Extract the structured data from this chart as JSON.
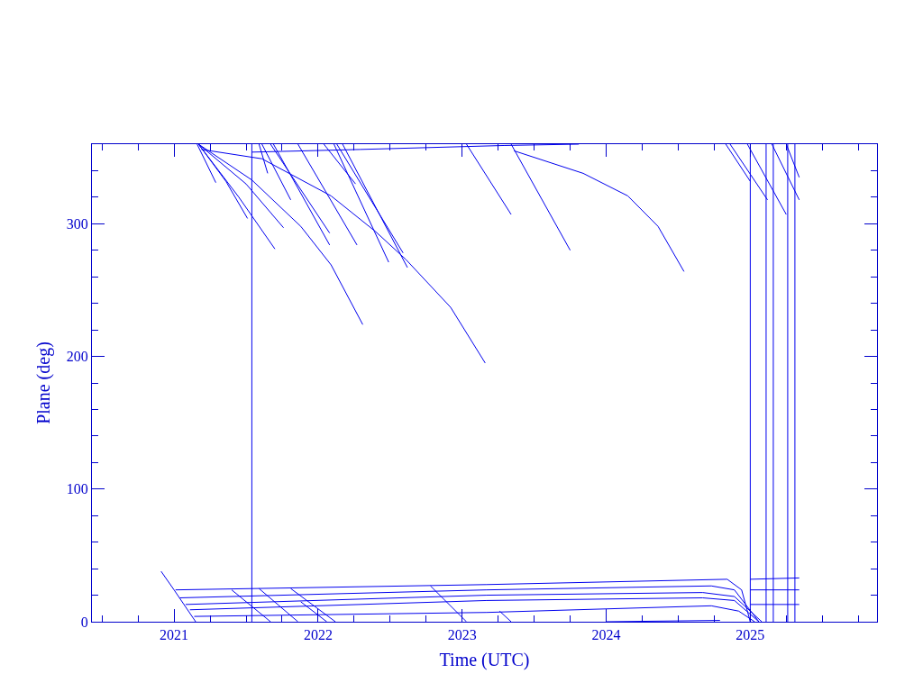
{
  "chart_data": {
    "type": "line",
    "xlabel": "Time (UTC)",
    "ylabel": "Plane (deg)",
    "xlim": [
      2020.43,
      2025.88
    ],
    "ylim": [
      0,
      360
    ],
    "xticks": [
      {
        "value": 2020.5,
        "label": null
      },
      {
        "value": 2020.75,
        "label": null
      },
      {
        "value": 2021,
        "label": "2021"
      },
      {
        "value": 2021.25,
        "label": null
      },
      {
        "value": 2021.5,
        "label": null
      },
      {
        "value": 2021.75,
        "label": null
      },
      {
        "value": 2022,
        "label": "2022"
      },
      {
        "value": 2022.25,
        "label": null
      },
      {
        "value": 2022.5,
        "label": null
      },
      {
        "value": 2022.75,
        "label": null
      },
      {
        "value": 2023,
        "label": "2023"
      },
      {
        "value": 2023.25,
        "label": null
      },
      {
        "value": 2023.5,
        "label": null
      },
      {
        "value": 2023.75,
        "label": null
      },
      {
        "value": 2024,
        "label": "2024"
      },
      {
        "value": 2024.25,
        "label": null
      },
      {
        "value": 2024.5,
        "label": null
      },
      {
        "value": 2024.75,
        "label": null
      },
      {
        "value": 2025,
        "label": "2025"
      },
      {
        "value": 2025.25,
        "label": null
      },
      {
        "value": 2025.5,
        "label": null
      },
      {
        "value": 2025.75,
        "label": null
      }
    ],
    "yticks": [
      0,
      {
        "value": 20,
        "label": null
      },
      {
        "value": 40,
        "label": null
      },
      {
        "value": 60,
        "label": null
      },
      {
        "value": 80,
        "label": null
      },
      100,
      {
        "value": 120,
        "label": null
      },
      {
        "value": 140,
        "label": null
      },
      {
        "value": 160,
        "label": null
      },
      {
        "value": 180,
        "label": null
      },
      200,
      {
        "value": 220,
        "label": null
      },
      {
        "value": 240,
        "label": null
      },
      {
        "value": 260,
        "label": null
      },
      {
        "value": 280,
        "label": null
      },
      300,
      {
        "value": 320,
        "label": null
      },
      {
        "value": 340,
        "label": null
      }
    ],
    "grid": false,
    "series": [
      {
        "color": "#0000ee",
        "x": [
          2021.16,
          2021.29
        ],
        "values": [
          360,
          331
        ]
      },
      {
        "color": "#0000ee",
        "x": [
          2021.17,
          2021.36,
          2021.51
        ],
        "values": [
          360,
          332,
          304
        ]
      },
      {
        "color": "#0000ee",
        "x": [
          2021.17,
          2021.45,
          2021.7
        ],
        "values": [
          360,
          320,
          281
        ]
      },
      {
        "color": "#0000ee",
        "x": [
          2021.17,
          2021.5,
          2021.76
        ],
        "values": [
          360,
          330,
          297
        ]
      },
      {
        "color": "#0000ee",
        "x": [
          2021.17,
          2021.54,
          2021.88,
          2022.09,
          2022.31
        ],
        "values": [
          360,
          333,
          298,
          269,
          224
        ]
      },
      {
        "color": "#0000ee",
        "x": [
          2021.19,
          2021.61,
          2022.09,
          2022.4,
          2022.61,
          2022.92,
          2023.16
        ],
        "values": [
          356,
          349,
          321,
          294,
          273,
          237,
          195
        ]
      },
      {
        "color": "#0000ee",
        "x": [
          2021.59,
          2021.65
        ],
        "values": [
          360,
          338
        ]
      },
      {
        "color": "#0000ee",
        "x": [
          2021.61,
          2021.81
        ],
        "values": [
          360,
          318
        ]
      },
      {
        "color": "#0000ee",
        "x": [
          2021.67,
          2022.08
        ],
        "values": [
          360,
          293
        ]
      },
      {
        "color": "#0000ee",
        "x": [
          2021.69,
          2022.08
        ],
        "values": [
          360,
          284
        ]
      },
      {
        "color": "#0000ee",
        "x": [
          2021.86,
          2022.27
        ],
        "values": [
          360,
          284
        ]
      },
      {
        "color": "#0000ee",
        "x": [
          2022.04,
          2022.26
        ],
        "values": [
          360,
          330
        ]
      },
      {
        "color": "#0000ee",
        "x": [
          2022.11,
          2022.49
        ],
        "values": [
          360,
          271
        ]
      },
      {
        "color": "#0000ee",
        "x": [
          2022.13,
          2022.59
        ],
        "values": [
          360,
          278
        ]
      },
      {
        "color": "#0000ee",
        "x": [
          2022.17,
          2022.62
        ],
        "values": [
          360,
          267
        ]
      },
      {
        "color": "#0000ee",
        "x": [
          2023.03,
          2023.34
        ],
        "values": [
          360,
          307
        ]
      },
      {
        "color": "#0000ee",
        "x": [
          2023.34,
          2023.75
        ],
        "values": [
          360,
          280
        ]
      },
      {
        "color": "#0000ee",
        "x": [
          2023.36,
          2023.84,
          2024.15,
          2024.36,
          2024.54
        ],
        "values": [
          355,
          338,
          321,
          298,
          264
        ]
      },
      {
        "color": "#0000ee",
        "x": [
          2021.54,
          2022.29,
          2023.29,
          2023.81
        ],
        "values": [
          354,
          356,
          359,
          360
        ]
      },
      {
        "color": "#0000ee",
        "x": [
          2024.83,
          2025.0
        ],
        "values": [
          360,
          332
        ]
      },
      {
        "color": "#0000ee",
        "x": [
          2024.86,
          2025.12
        ],
        "values": [
          360,
          318
        ]
      },
      {
        "color": "#0000ee",
        "x": [
          2024.98,
          2025.25
        ],
        "values": [
          360,
          307
        ]
      },
      {
        "color": "#0000ee",
        "x": [
          2025.15,
          2025.34
        ],
        "values": [
          360,
          318
        ]
      },
      {
        "color": "#0000ee",
        "x": [
          2025.25,
          2025.34
        ],
        "values": [
          360,
          335
        ]
      },
      {
        "color": "#0000ee",
        "x": [
          2021.54,
          2021.54
        ],
        "values": [
          360,
          0
        ]
      },
      {
        "color": "#0000ee",
        "x": [
          2025.0,
          2025.0
        ],
        "values": [
          360,
          0
        ]
      },
      {
        "color": "#0000ee",
        "x": [
          2025.11,
          2025.11
        ],
        "values": [
          360,
          0
        ]
      },
      {
        "color": "#0000ee",
        "x": [
          2025.16,
          2025.16
        ],
        "values": [
          360,
          0
        ]
      },
      {
        "color": "#0000ee",
        "x": [
          2025.26,
          2025.26
        ],
        "values": [
          360,
          0
        ]
      },
      {
        "color": "#0000ee",
        "x": [
          2025.31,
          2025.31
        ],
        "values": [
          360,
          0
        ]
      },
      {
        "color": "#0000ee",
        "x": [
          2020.91,
          2021.0,
          2021.15
        ],
        "values": [
          38,
          24,
          0
        ]
      },
      {
        "color": "#0000ee",
        "x": [
          2021.01,
          2023.17,
          2024.84,
          2024.94,
          2025.0
        ],
        "values": [
          24,
          28,
          32,
          24,
          0
        ]
      },
      {
        "color": "#0000ee",
        "x": [
          2021.04,
          2023.17,
          2024.73,
          2024.89,
          2025.06
        ],
        "values": [
          18,
          24,
          27,
          24,
          0
        ]
      },
      {
        "color": "#0000ee",
        "x": [
          2021.08,
          2023.17,
          2024.67,
          2024.89,
          2025.08
        ],
        "values": [
          13,
          20,
          22,
          19,
          0
        ]
      },
      {
        "color": "#0000ee",
        "x": [
          2021.11,
          2023.17,
          2024.67,
          2024.89,
          2025.06
        ],
        "values": [
          9,
          16,
          18,
          16,
          0
        ]
      },
      {
        "color": "#0000ee",
        "x": [
          2021.14,
          2023.17,
          2024.73,
          2024.92,
          2025.03
        ],
        "values": [
          4,
          7,
          12,
          8,
          0
        ]
      },
      {
        "color": "#0000ee",
        "x": [
          2025.0,
          2025.34
        ],
        "values": [
          32,
          33
        ]
      },
      {
        "color": "#0000ee",
        "x": [
          2025.0,
          2025.34
        ],
        "values": [
          24,
          24
        ]
      },
      {
        "color": "#0000ee",
        "x": [
          2025.0,
          2025.34
        ],
        "values": [
          13,
          13
        ]
      },
      {
        "color": "#0000ee",
        "x": [
          2021.4,
          2021.67
        ],
        "values": [
          24,
          0
        ]
      },
      {
        "color": "#0000ee",
        "x": [
          2021.59,
          2021.86
        ],
        "values": [
          25,
          0
        ]
      },
      {
        "color": "#0000ee",
        "x": [
          2021.81,
          2022.12
        ],
        "values": [
          25,
          0
        ]
      },
      {
        "color": "#0000ee",
        "x": [
          2021.88,
          2022.06
        ],
        "values": [
          15,
          0
        ]
      },
      {
        "color": "#0000ee",
        "x": [
          2022.78,
          2023.03
        ],
        "values": [
          27,
          0
        ]
      },
      {
        "color": "#0000ee",
        "x": [
          2023.26,
          2023.34
        ],
        "values": [
          8,
          0
        ]
      },
      {
        "color": "#0000ee",
        "x": [
          2024.0,
          2024.79
        ],
        "values": [
          0,
          1
        ]
      }
    ]
  }
}
